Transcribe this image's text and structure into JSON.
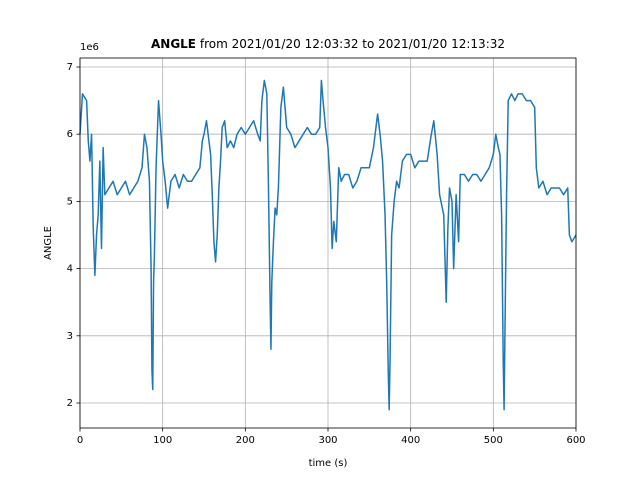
{
  "chart_data": {
    "type": "line",
    "title": "ANGLE",
    "title_suffix": "from 2021/01/20 12:03:32 to 2021/01/20 12:13:32",
    "x_label": "time (s)",
    "y_label": "ANGLE",
    "y_offset_label": "1e6",
    "x": [
      0,
      3,
      8,
      10,
      12,
      14,
      16,
      18,
      20,
      22,
      24,
      26,
      28,
      30,
      35,
      40,
      45,
      50,
      55,
      60,
      65,
      70,
      75,
      78,
      81,
      84,
      86,
      87,
      88,
      89,
      90,
      92,
      95,
      98,
      100,
      103,
      106,
      110,
      115,
      120,
      125,
      130,
      135,
      140,
      145,
      148,
      150,
      153,
      155,
      158,
      160,
      162,
      164,
      166,
      168,
      170,
      172,
      175,
      178,
      182,
      186,
      190,
      195,
      200,
      205,
      210,
      215,
      218,
      220,
      223,
      226,
      228,
      230,
      231,
      232,
      234,
      236,
      238,
      240,
      243,
      246,
      250,
      255,
      260,
      265,
      270,
      275,
      280,
      285,
      290,
      292,
      294,
      297,
      300,
      303,
      305,
      307,
      310,
      313,
      316,
      320,
      325,
      330,
      335,
      340,
      345,
      350,
      355,
      360,
      363,
      366,
      369,
      371,
      373,
      374,
      375,
      377,
      380,
      383,
      386,
      390,
      395,
      400,
      405,
      410,
      415,
      420,
      425,
      428,
      432,
      435,
      440,
      443,
      445,
      447,
      450,
      452,
      455,
      458,
      460,
      465,
      470,
      475,
      480,
      485,
      490,
      495,
      500,
      503,
      506,
      508,
      510,
      512,
      513,
      514,
      516,
      518,
      522,
      526,
      530,
      535,
      540,
      545,
      550,
      552,
      555,
      560,
      565,
      570,
      575,
      580,
      585,
      590,
      592,
      595,
      600
    ],
    "series": [
      {
        "name": "ANGLE",
        "color": "#1f77b4",
        "values": [
          6.0,
          6.6,
          6.5,
          5.9,
          5.6,
          6.0,
          4.6,
          3.9,
          4.5,
          4.8,
          5.6,
          4.3,
          5.8,
          5.1,
          5.2,
          5.3,
          5.1,
          5.2,
          5.3,
          5.1,
          5.2,
          5.3,
          5.5,
          6.0,
          5.8,
          5.3,
          4.0,
          2.5,
          2.2,
          3.8,
          4.2,
          5.5,
          6.5,
          6.0,
          5.6,
          5.3,
          4.9,
          5.3,
          5.4,
          5.2,
          5.4,
          5.3,
          5.3,
          5.4,
          5.5,
          5.9,
          6.0,
          6.2,
          6.0,
          5.7,
          5.1,
          4.4,
          4.1,
          4.5,
          5.2,
          5.6,
          6.1,
          6.2,
          5.8,
          5.9,
          5.8,
          6.0,
          6.1,
          6.0,
          6.1,
          6.2,
          6.0,
          5.9,
          6.5,
          6.8,
          6.6,
          5.2,
          3.5,
          2.8,
          3.8,
          4.4,
          4.9,
          4.8,
          5.2,
          6.4,
          6.7,
          6.1,
          6.0,
          5.8,
          5.9,
          6.0,
          6.1,
          6.0,
          6.0,
          6.1,
          6.8,
          6.5,
          6.1,
          5.8,
          5.2,
          4.3,
          4.7,
          4.4,
          5.5,
          5.3,
          5.4,
          5.4,
          5.2,
          5.3,
          5.5,
          5.5,
          5.5,
          5.8,
          6.3,
          6.0,
          5.6,
          4.8,
          3.8,
          2.4,
          1.9,
          2.6,
          4.5,
          5.0,
          5.3,
          5.2,
          5.6,
          5.7,
          5.7,
          5.5,
          5.6,
          5.6,
          5.6,
          6.0,
          6.2,
          5.7,
          5.1,
          4.8,
          3.5,
          4.6,
          5.2,
          5.0,
          4.0,
          5.1,
          4.4,
          5.4,
          5.4,
          5.3,
          5.4,
          5.4,
          5.3,
          5.4,
          5.5,
          5.7,
          6.0,
          5.8,
          5.7,
          4.8,
          2.6,
          1.9,
          3.0,
          5.1,
          6.5,
          6.6,
          6.5,
          6.6,
          6.6,
          6.5,
          6.5,
          6.4,
          5.5,
          5.2,
          5.3,
          5.1,
          5.2,
          5.2,
          5.2,
          5.1,
          5.2,
          4.5,
          4.4,
          4.5
        ]
      }
    ],
    "xlim": [
      0,
      600
    ],
    "xticks": [
      0,
      100,
      200,
      300,
      400,
      500,
      600
    ],
    "ylim": [
      1.628,
      7.134
    ],
    "yticks": [
      2,
      3,
      4,
      5,
      6,
      7
    ],
    "grid": true
  }
}
